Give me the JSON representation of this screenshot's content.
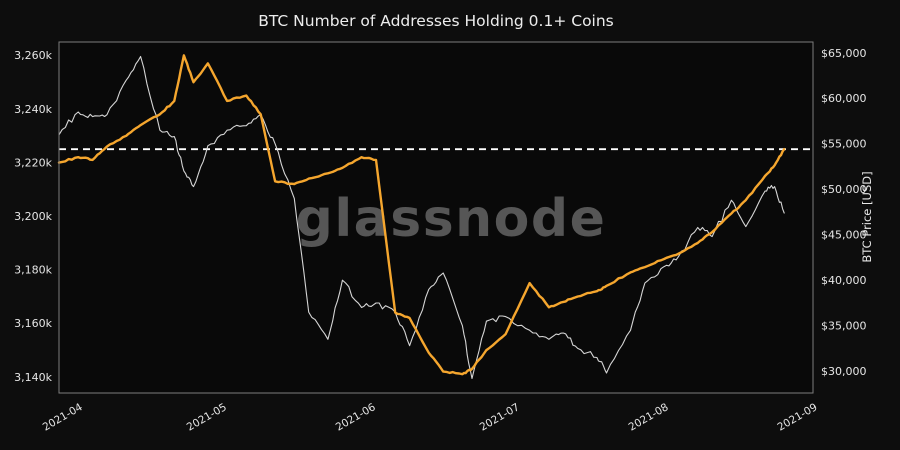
{
  "chart": {
    "title": "BTC Number of Addresses Holding 0.1+ Coins",
    "watermark": "glassnode",
    "colors": {
      "background": "#0d0d0d",
      "plot_background": "#090909",
      "addresses_line": "#f5a62e",
      "price_line": "#d5d5d5",
      "reference_line": "#ffffff",
      "border": "#7d7d7d",
      "tick_text": "#e6e6e6",
      "title_text": "#ededed",
      "watermark_text": "#565656"
    }
  },
  "chart_data": {
    "type": "line",
    "title": "BTC Number of Addresses Holding 0.1+ Coins",
    "watermark": "glassnode",
    "grid": false,
    "legend": "none",
    "x": [
      "2021-03-28",
      "2021-04-01",
      "2021-04-04",
      "2021-04-07",
      "2021-04-11",
      "2021-04-14",
      "2021-04-18",
      "2021-04-21",
      "2021-04-23",
      "2021-04-25",
      "2021-04-28",
      "2021-05-02",
      "2021-05-06",
      "2021-05-09",
      "2021-05-12",
      "2021-05-16",
      "2021-05-19",
      "2021-05-23",
      "2021-05-26",
      "2021-05-30",
      "2021-06-02",
      "2021-06-06",
      "2021-06-09",
      "2021-06-13",
      "2021-06-16",
      "2021-06-20",
      "2021-06-22",
      "2021-06-25",
      "2021-06-29",
      "2021-07-04",
      "2021-07-08",
      "2021-07-11",
      "2021-07-14",
      "2021-07-18",
      "2021-07-20",
      "2021-07-25",
      "2021-07-28",
      "2021-08-01",
      "2021-08-04",
      "2021-08-08",
      "2021-08-11",
      "2021-08-15",
      "2021-08-18",
      "2021-08-22",
      "2021-08-24",
      "2021-08-26"
    ],
    "series": [
      {
        "name": "BTC Number of Addresses Holding 0.1+ Coins",
        "axis": "left",
        "unit": "thousand addresses",
        "color": "#f5a62e",
        "line_width": 2.4,
        "values": [
          3220,
          3222,
          3221,
          3226,
          3230,
          3234,
          3238,
          3243,
          3260,
          3250,
          3257,
          3243,
          3245,
          3238,
          3213,
          3212,
          3214,
          3216,
          3218,
          3222,
          3221,
          3164,
          3162,
          3149,
          3142,
          3141,
          3143,
          3150,
          3156,
          3175,
          3166,
          3168,
          3170,
          3172,
          3174,
          3179,
          3181,
          3184,
          3186,
          3190,
          3194,
          3201,
          3206,
          3215,
          3219,
          3225
        ]
      },
      {
        "name": "BTC Price [USD]",
        "axis": "right",
        "unit": "USD",
        "color": "#d5d5d5",
        "line_width": 1.1,
        "values": [
          56000,
          58500,
          58000,
          58200,
          62000,
          64600,
          56500,
          55800,
          52000,
          50300,
          54800,
          56500,
          57000,
          58200,
          55000,
          49000,
          36500,
          33500,
          40000,
          37000,
          37500,
          36500,
          32800,
          39000,
          40800,
          35000,
          29200,
          35500,
          36000,
          34500,
          33500,
          34200,
          32500,
          31500,
          29800,
          34500,
          39700,
          41500,
          42600,
          45800,
          44800,
          48800,
          45900,
          49800,
          50300,
          47400
        ]
      }
    ],
    "left_axis": {
      "tick_labels": [
        "3,260k",
        "3,240k",
        "3,220k",
        "3,200k",
        "3,180k",
        "3,160k",
        "3,140k"
      ],
      "tick_values": [
        3260,
        3240,
        3220,
        3200,
        3180,
        3160,
        3140
      ],
      "range": [
        3134,
        3265
      ],
      "unit": "k (thousand addresses)"
    },
    "right_axis": {
      "label": "BTC Price [USD]",
      "tick_labels": [
        "$65,000",
        "$60,000",
        "$55,000",
        "$50,000",
        "$45,000",
        "$40,000",
        "$35,000",
        "$30,000"
      ],
      "tick_values": [
        65000,
        60000,
        55000,
        50000,
        45000,
        40000,
        35000,
        30000
      ],
      "range": [
        27600,
        66200
      ]
    },
    "x_axis": {
      "start": "2021-03-28",
      "end": "2021-09-01",
      "tick_labels": [
        "2021-04",
        "2021-05",
        "2021-06",
        "2021-07",
        "2021-08",
        "2021-09"
      ],
      "tick_dates": [
        "2021-04-01",
        "2021-05-01",
        "2021-06-01",
        "2021-07-01",
        "2021-08-01",
        "2021-09-01"
      ]
    },
    "reference_line": {
      "axis": "left",
      "value": 3225,
      "style": "dashed",
      "color": "#ffffff",
      "description": "horizontal dashed line at latest addresses value (~3,225k)"
    }
  }
}
